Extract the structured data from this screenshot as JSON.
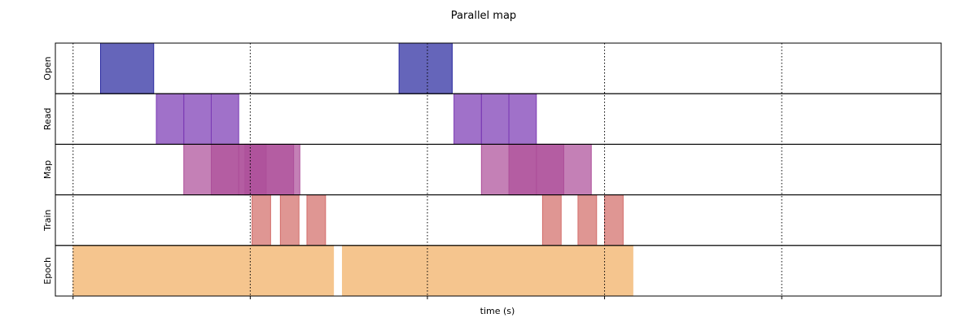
{
  "chart_data": {
    "type": "timeline",
    "title": "Parallel map",
    "xlabel": "time (s)",
    "xlim": [
      -0.1,
      4.9
    ],
    "x_ticks": [
      0,
      1,
      2,
      3,
      4,
      5
    ],
    "x_tick_labels": [],
    "grid": "vertical dotted lines at x ticks",
    "rows": [
      {
        "name": "Open",
        "color": "#2a2aa0",
        "bars": [
          {
            "start": 0.155,
            "end": 0.455
          },
          {
            "start": 1.84,
            "end": 2.14
          }
        ]
      },
      {
        "name": "Read",
        "color": "#7b3ab4",
        "bars": [
          {
            "start": 0.47,
            "end": 0.625
          },
          {
            "start": 0.625,
            "end": 0.78
          },
          {
            "start": 0.78,
            "end": 0.935
          },
          {
            "start": 2.15,
            "end": 2.305
          },
          {
            "start": 2.305,
            "end": 2.46
          },
          {
            "start": 2.46,
            "end": 2.615
          }
        ]
      },
      {
        "name": "Map",
        "color": "#ad4f9a",
        "bars": [
          {
            "start": 0.625,
            "end": 0.935
          },
          {
            "start": 0.78,
            "end": 1.09
          },
          {
            "start": 0.935,
            "end": 1.245
          },
          {
            "start": 0.97,
            "end": 1.28
          },
          {
            "start": 2.305,
            "end": 2.615
          },
          {
            "start": 2.46,
            "end": 2.77
          },
          {
            "start": 2.615,
            "end": 2.925
          }
        ]
      },
      {
        "name": "Train",
        "color": "#d36d6a",
        "bars": [
          {
            "start": 1.01,
            "end": 1.115
          },
          {
            "start": 1.17,
            "end": 1.275
          },
          {
            "start": 1.32,
            "end": 1.425
          },
          {
            "start": 2.65,
            "end": 2.755
          },
          {
            "start": 2.85,
            "end": 2.955
          },
          {
            "start": 3.0,
            "end": 3.105
          }
        ]
      },
      {
        "name": "Epoch",
        "color": "#f5c58e",
        "bars": [
          {
            "start": 0.0,
            "end": 1.47
          },
          {
            "start": 1.52,
            "end": 3.16
          }
        ]
      }
    ]
  }
}
